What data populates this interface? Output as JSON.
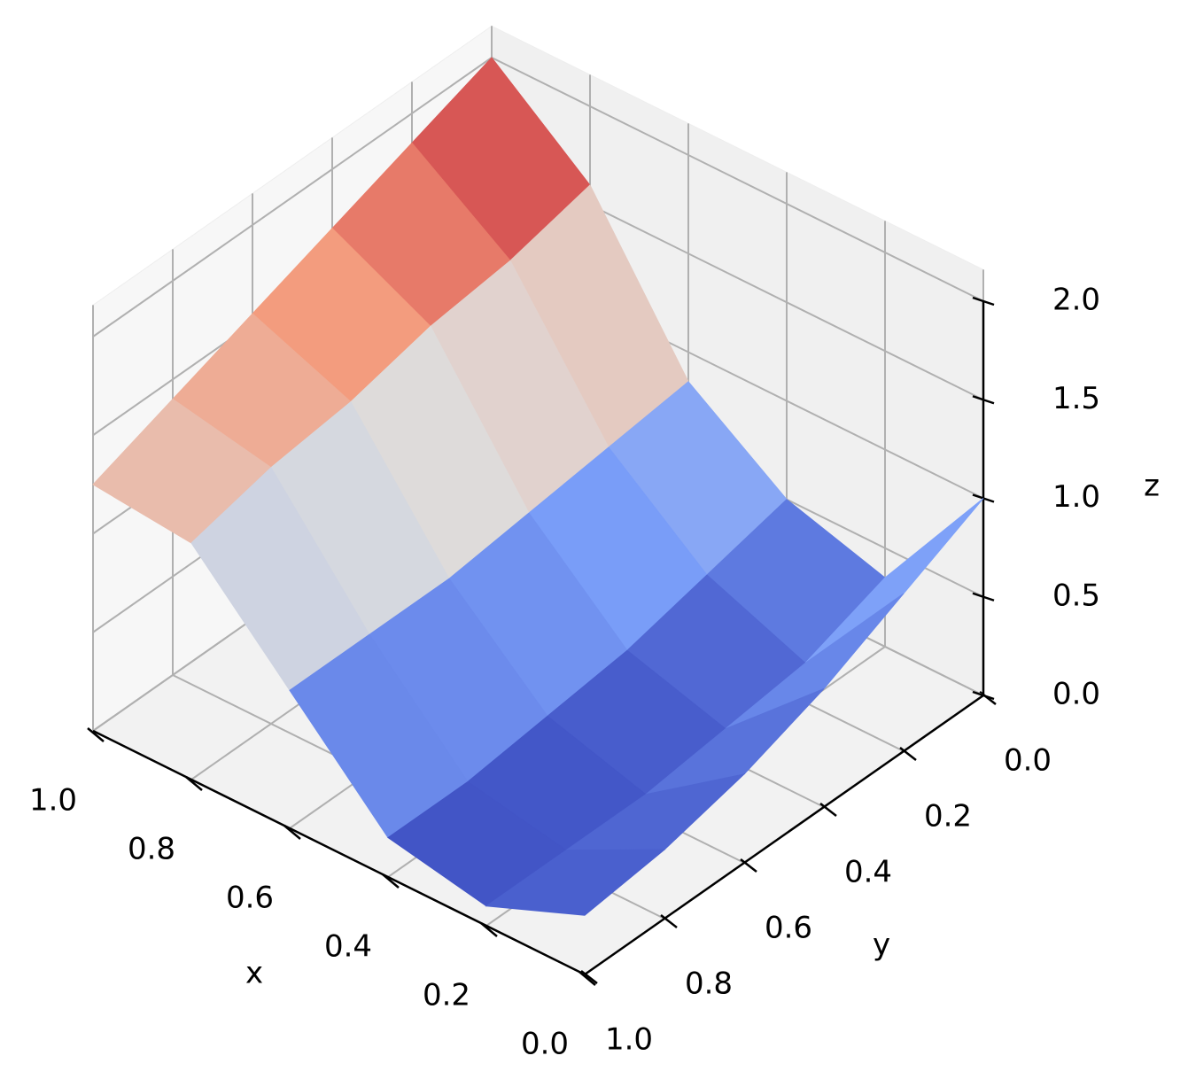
{
  "chart_data": {
    "type": "surface3d",
    "colormap": "coolwarm",
    "x_label": "x",
    "y_label": "y",
    "z_label": "z",
    "x": [
      0,
      0.2,
      0.4,
      0.6,
      0.8,
      1.0
    ],
    "y": [
      0,
      0.2,
      0.4,
      0.6,
      0.8,
      1.0
    ],
    "z": [
      [
        1.0,
        0.35,
        0.5,
        0.85,
        1.6,
        2.0
      ],
      [
        0.8,
        0.2,
        0.4,
        0.8,
        1.5,
        1.85
      ],
      [
        0.6,
        0.15,
        0.3,
        0.75,
        1.45,
        1.7
      ],
      [
        0.45,
        0.1,
        0.25,
        0.7,
        1.35,
        1.55
      ],
      [
        0.35,
        0.1,
        0.2,
        0.7,
        1.3,
        1.4
      ],
      [
        0.3,
        0.1,
        0.2,
        0.7,
        1.2,
        1.25
      ]
    ],
    "xlim": [
      0,
      1
    ],
    "ylim": [
      0,
      1
    ],
    "zlim": [
      0,
      2
    ],
    "xticks": [
      {
        "value": 0,
        "label": "0.0"
      },
      {
        "value": 0.2,
        "label": "0.2"
      },
      {
        "value": 0.4,
        "label": "0.4"
      },
      {
        "value": 0.6,
        "label": "0.6"
      },
      {
        "value": 0.8,
        "label": "0.8"
      },
      {
        "value": 1,
        "label": "1.0"
      }
    ],
    "yticks": [
      {
        "value": 0,
        "label": "0.0"
      },
      {
        "value": 0.2,
        "label": "0.2"
      },
      {
        "value": 0.4,
        "label": "0.4"
      },
      {
        "value": 0.6,
        "label": "0.6"
      },
      {
        "value": 0.8,
        "label": "0.8"
      },
      {
        "value": 1,
        "label": "1.0"
      }
    ],
    "zticks": [
      {
        "value": 0,
        "label": "0.0"
      },
      {
        "value": 0.5,
        "label": "0.5"
      },
      {
        "value": 1,
        "label": "1.0"
      },
      {
        "value": 1.5,
        "label": "1.5"
      },
      {
        "value": 2,
        "label": "2.0"
      }
    ],
    "grid": true
  }
}
